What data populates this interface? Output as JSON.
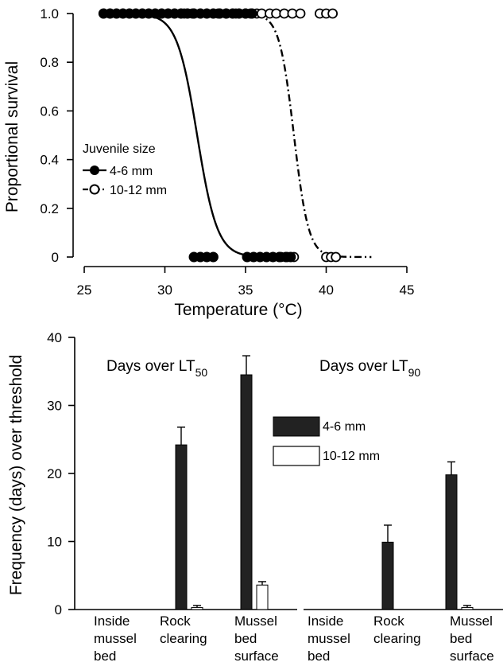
{
  "chart_data": [
    {
      "type": "scatter",
      "xlabel": "Temperature (°C)",
      "ylabel": "Proportional survival",
      "xlim": [
        25,
        45
      ],
      "ylim": [
        0,
        1
      ],
      "x_ticks": [
        25,
        30,
        35,
        40,
        45
      ],
      "y_ticks": [
        0,
        0.2,
        0.4,
        0.6,
        0.8,
        1.0
      ],
      "x_tick_labels": [
        "25",
        "30",
        "35",
        "40",
        "45"
      ],
      "y_tick_labels": [
        "0",
        "0.2",
        "0.4",
        "0.6",
        "0.8",
        "1.0"
      ],
      "legend": {
        "title": "Juvenile size",
        "placement": "left-middle",
        "entries": [
          "4-6 mm",
          "10-12 mm"
        ]
      },
      "series": [
        {
          "name": "4-6 mm",
          "marker": "filled-circle",
          "line": "solid",
          "color": "#000000",
          "points_survived": [
            26.2,
            26.6,
            27.0,
            27.4,
            27.8,
            28.2,
            28.6,
            29.0,
            29.4,
            29.8,
            30.2,
            30.6,
            31.0,
            31.4,
            31.8,
            32.2,
            32.6,
            33.0,
            33.4,
            33.8,
            34.2,
            34.6,
            35.0,
            35.4
          ],
          "points_died": [
            31.8,
            32.2,
            32.6,
            33.0,
            35.1,
            35.5,
            35.9,
            36.3,
            36.7,
            37.1,
            37.5,
            37.8
          ],
          "fit_lt50": 32.0,
          "fit_slope": 1.6,
          "fit_range": [
            26.2,
            37.6
          ]
        },
        {
          "name": "10-12 mm",
          "marker": "open-circle",
          "line": "dash-dot",
          "color": "#000000",
          "points_survived": [
            31.2,
            31.7,
            33.3,
            33.8,
            34.4,
            35.0,
            35.3,
            35.7,
            36.0,
            36.5,
            36.9,
            37.4,
            37.9,
            38.4,
            39.6,
            40.0,
            40.4
          ],
          "points_died": [
            37.2,
            37.6,
            38.0,
            40.0,
            40.3,
            40.6
          ],
          "fit_lt50": 38.0,
          "fit_slope": 2.2,
          "fit_range": [
            31.0,
            42.8
          ]
        }
      ]
    },
    {
      "type": "bar",
      "ylabel": "Frequency (days) over threshold",
      "ylim": [
        0,
        40
      ],
      "y_ticks": [
        0,
        10,
        20,
        30,
        40
      ],
      "y_tick_labels": [
        "0",
        "10",
        "20",
        "30",
        "40"
      ],
      "legend": {
        "placement": "center",
        "entries": [
          "4-6 mm",
          "10-12 mm"
        ]
      },
      "categories": [
        [
          "Inside",
          "mussel",
          "bed"
        ],
        [
          "Rock",
          "clearing"
        ],
        [
          "Mussel",
          "bed",
          "surface"
        ]
      ],
      "panels": [
        {
          "title": "Days over LT",
          "title_sub": "50",
          "series": [
            {
              "name": "4-6 mm",
              "color": "#222222",
              "values": [
                0,
                24.2,
                34.5
              ],
              "errors": [
                0,
                2.6,
                2.8
              ]
            },
            {
              "name": "10-12 mm",
              "color": "#ffffff",
              "values": [
                0,
                0.3,
                3.6
              ],
              "errors": [
                0,
                0.3,
                0.5
              ]
            }
          ]
        },
        {
          "title": "Days over LT",
          "title_sub": "90",
          "series": [
            {
              "name": "4-6 mm",
              "color": "#222222",
              "values": [
                0,
                9.9,
                19.8
              ],
              "errors": [
                0,
                2.5,
                1.9
              ]
            },
            {
              "name": "10-12 mm",
              "color": "#ffffff",
              "values": [
                0,
                0,
                0.3
              ],
              "errors": [
                0,
                0,
                0.3
              ]
            }
          ]
        }
      ]
    }
  ]
}
